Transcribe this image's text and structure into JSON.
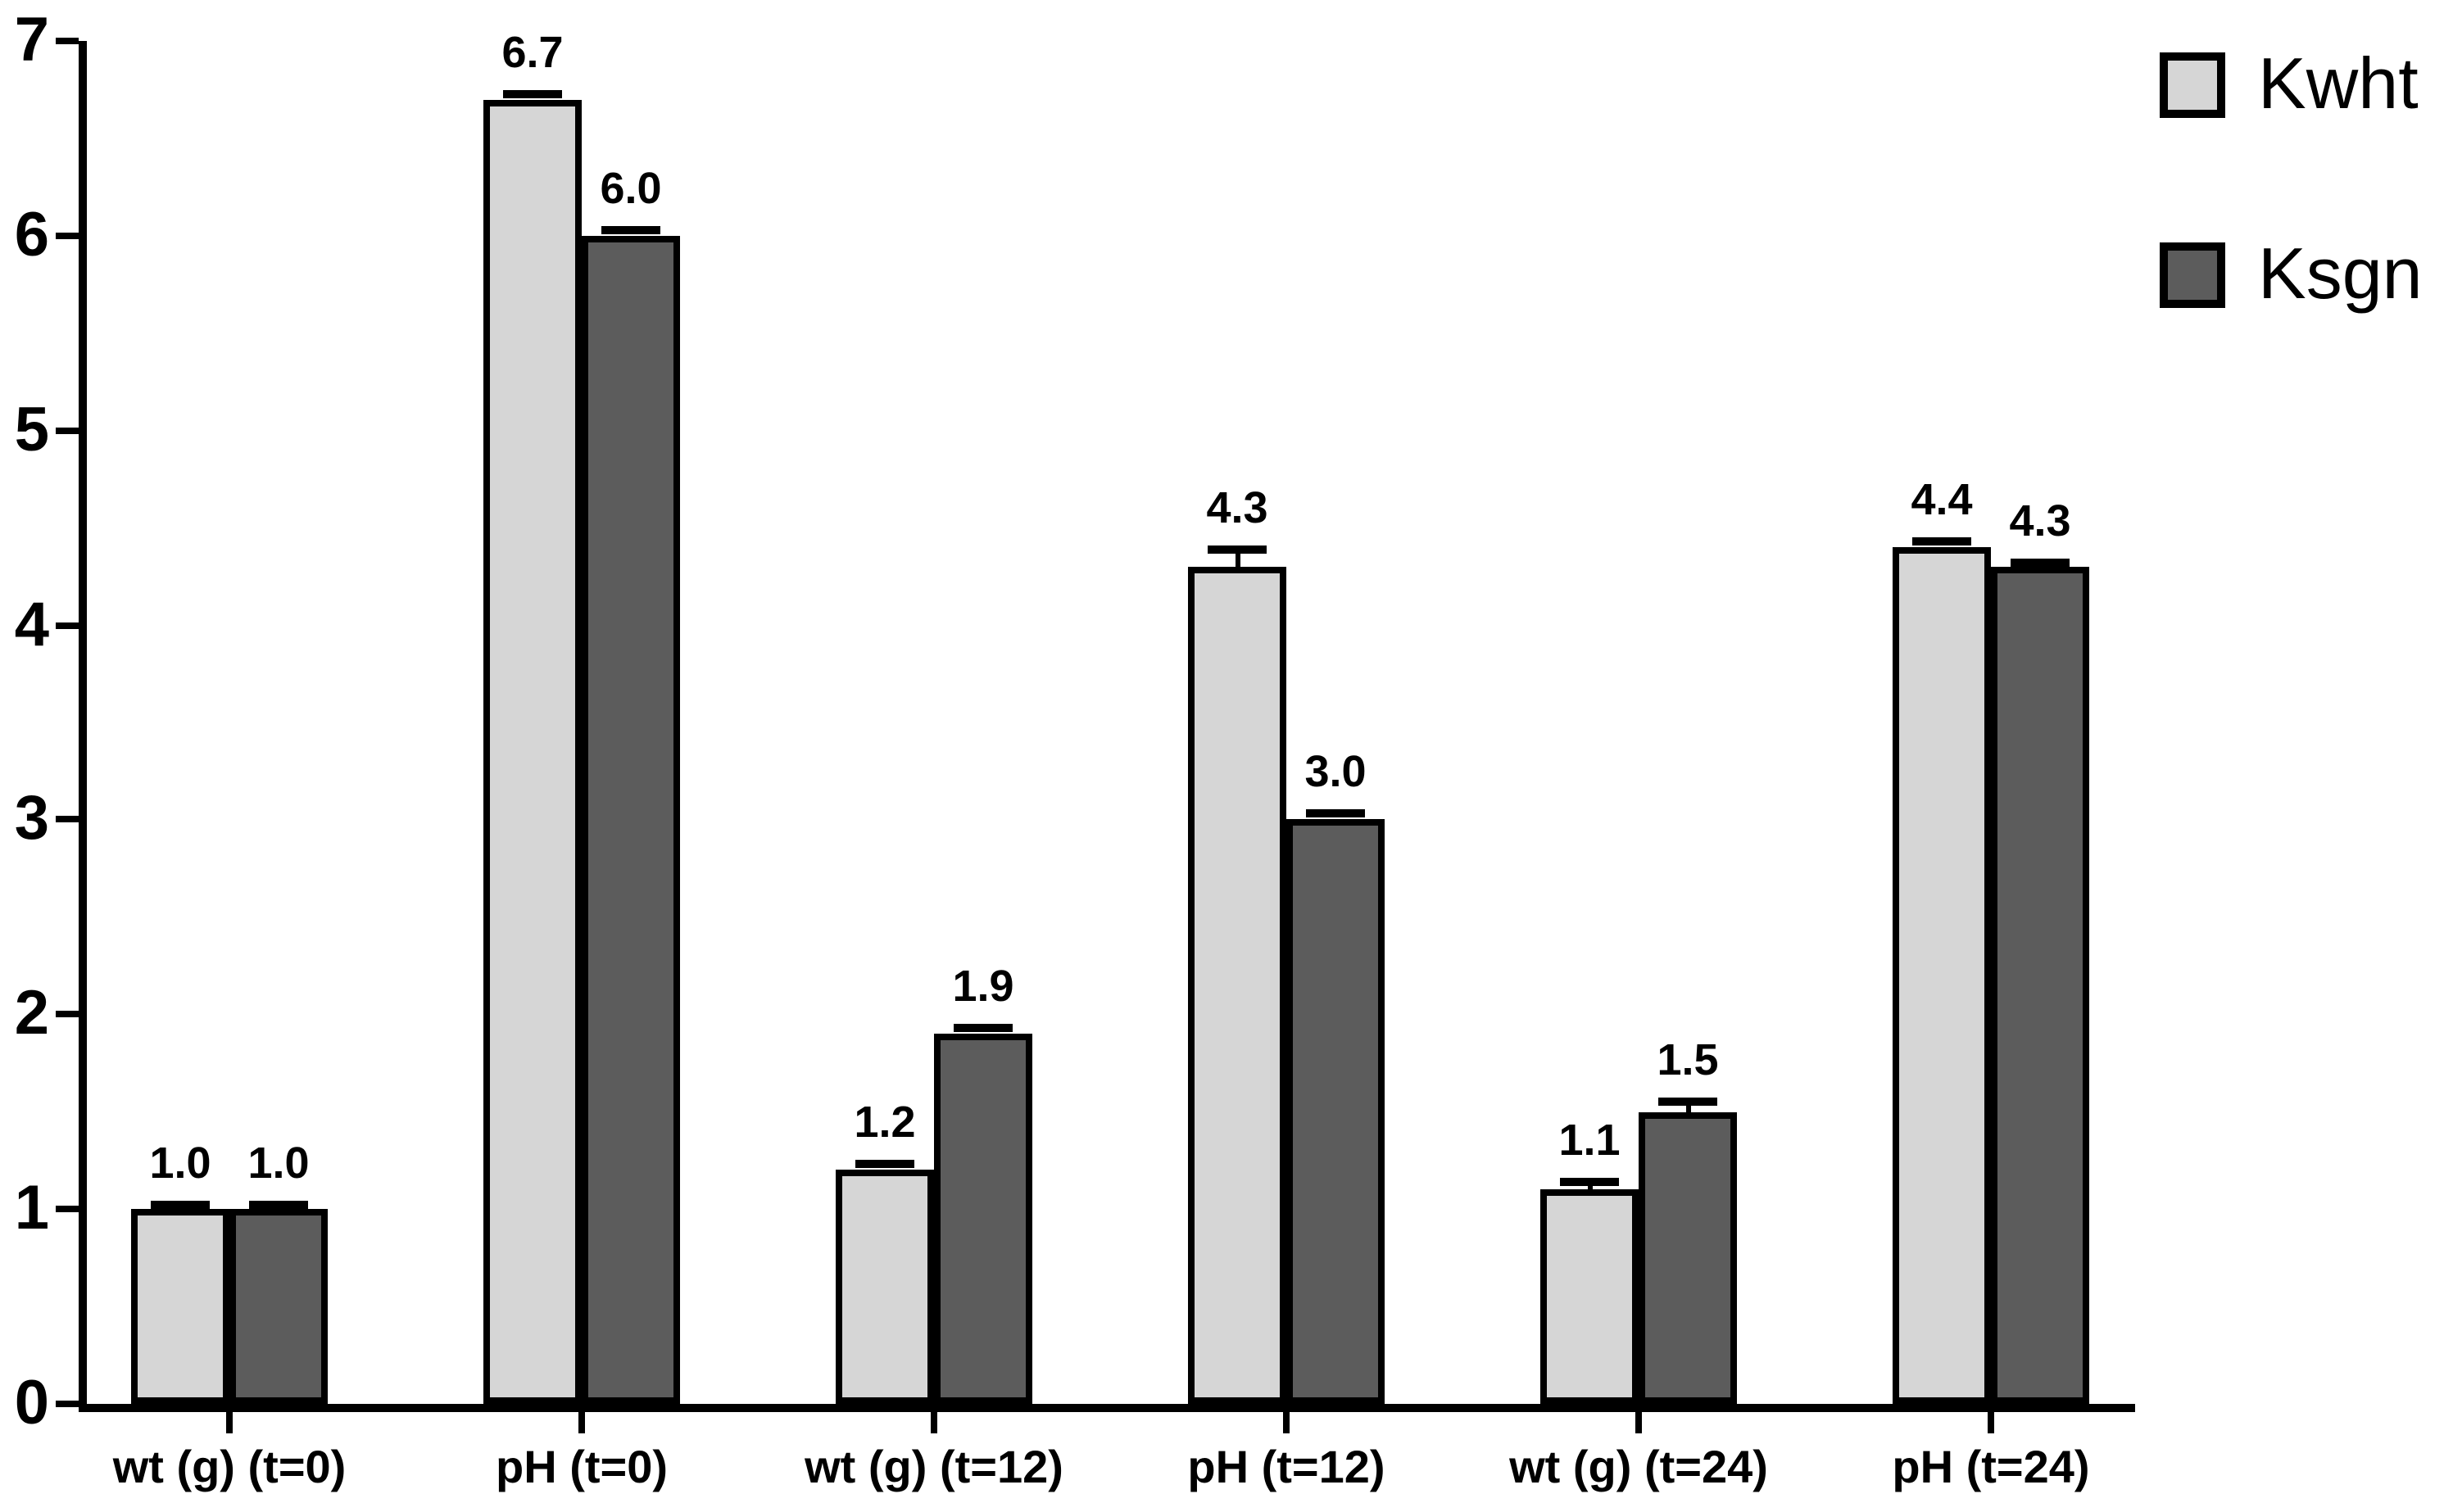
{
  "chart_data": {
    "type": "bar",
    "title": "",
    "xlabel": "",
    "ylabel": "",
    "categories": [
      "wt (g) (t=0)",
      "pH (t=0)",
      "wt (g) (t=12)",
      "pH (t=12)",
      "wt (g) (t=24)",
      "pH (t=24)"
    ],
    "series": [
      {
        "name": "Kwht",
        "color": "#d6d6d6",
        "values": [
          1.0,
          6.7,
          1.2,
          4.3,
          1.1,
          4.4
        ],
        "value_labels": [
          "1.0",
          "6.7",
          "1.2",
          "4.3",
          "1.1",
          "4.4"
        ],
        "errors": [
          0.02,
          0.03,
          0.03,
          0.09,
          0.04,
          0.03
        ]
      },
      {
        "name": "Ksgn",
        "color": "#5c5c5c",
        "values": [
          1.0,
          6.0,
          1.9,
          3.0,
          1.5,
          4.3
        ],
        "value_labels": [
          "1.0",
          "6.0",
          "1.9",
          "3.0",
          "1.5",
          "4.3"
        ],
        "errors": [
          0.02,
          0.03,
          0.03,
          0.03,
          0.05,
          0.02
        ]
      }
    ],
    "ylim": [
      0,
      7
    ],
    "yticks": [
      0,
      1,
      2,
      3,
      4,
      5,
      6,
      7
    ],
    "grid": false,
    "bar_outline_color": "#000000",
    "error_bar_color": "#000000",
    "legend_position": "top-right",
    "legend": [
      "Kwht",
      "Ksgn"
    ]
  }
}
